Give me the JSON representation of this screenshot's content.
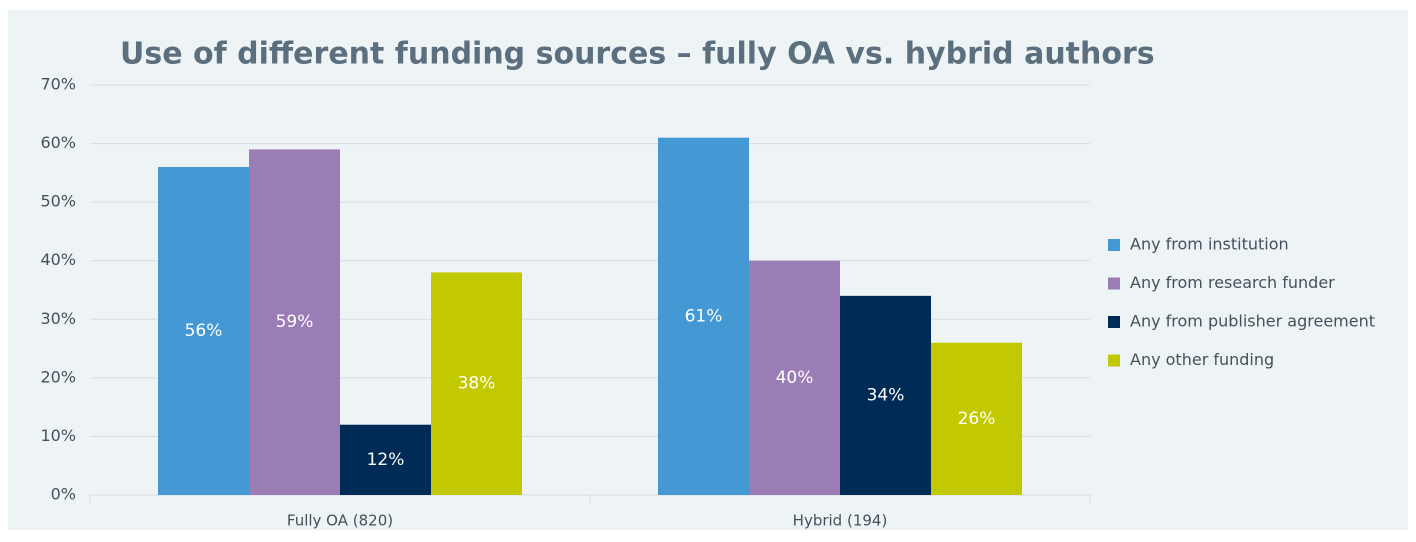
{
  "chart_data": {
    "type": "bar",
    "title": "Use of different funding sources – fully OA vs. hybrid authors",
    "categories": [
      "Fully OA (820)",
      "Hybrid (194)"
    ],
    "series": [
      {
        "name": "Any from institution",
        "color": "#4499d4",
        "values": [
          56,
          61
        ],
        "value_labels": [
          "56%",
          "61%"
        ]
      },
      {
        "name": "Any from research funder",
        "color": "#9b7db6",
        "values": [
          59,
          40
        ],
        "value_labels": [
          "59%",
          "40%"
        ]
      },
      {
        "name": "Any from publisher agreement",
        "color": "#002b57",
        "values": [
          12,
          34
        ],
        "value_labels": [
          "12%",
          "34%"
        ]
      },
      {
        "name": "Any other funding",
        "color": "#c3c900",
        "values": [
          38,
          26
        ],
        "value_labels": [
          "38%",
          "26%"
        ]
      }
    ],
    "ylim": [
      0,
      70
    ],
    "yticks": [
      {
        "value": 0,
        "label": "0%"
      },
      {
        "value": 10,
        "label": "10%"
      },
      {
        "value": 20,
        "label": "20%"
      },
      {
        "value": 30,
        "label": "30%"
      },
      {
        "value": 40,
        "label": "40%"
      },
      {
        "value": 50,
        "label": "50%"
      },
      {
        "value": 60,
        "label": "60%"
      },
      {
        "value": 70,
        "label": "70%"
      }
    ],
    "grid": true,
    "legend": "right"
  }
}
